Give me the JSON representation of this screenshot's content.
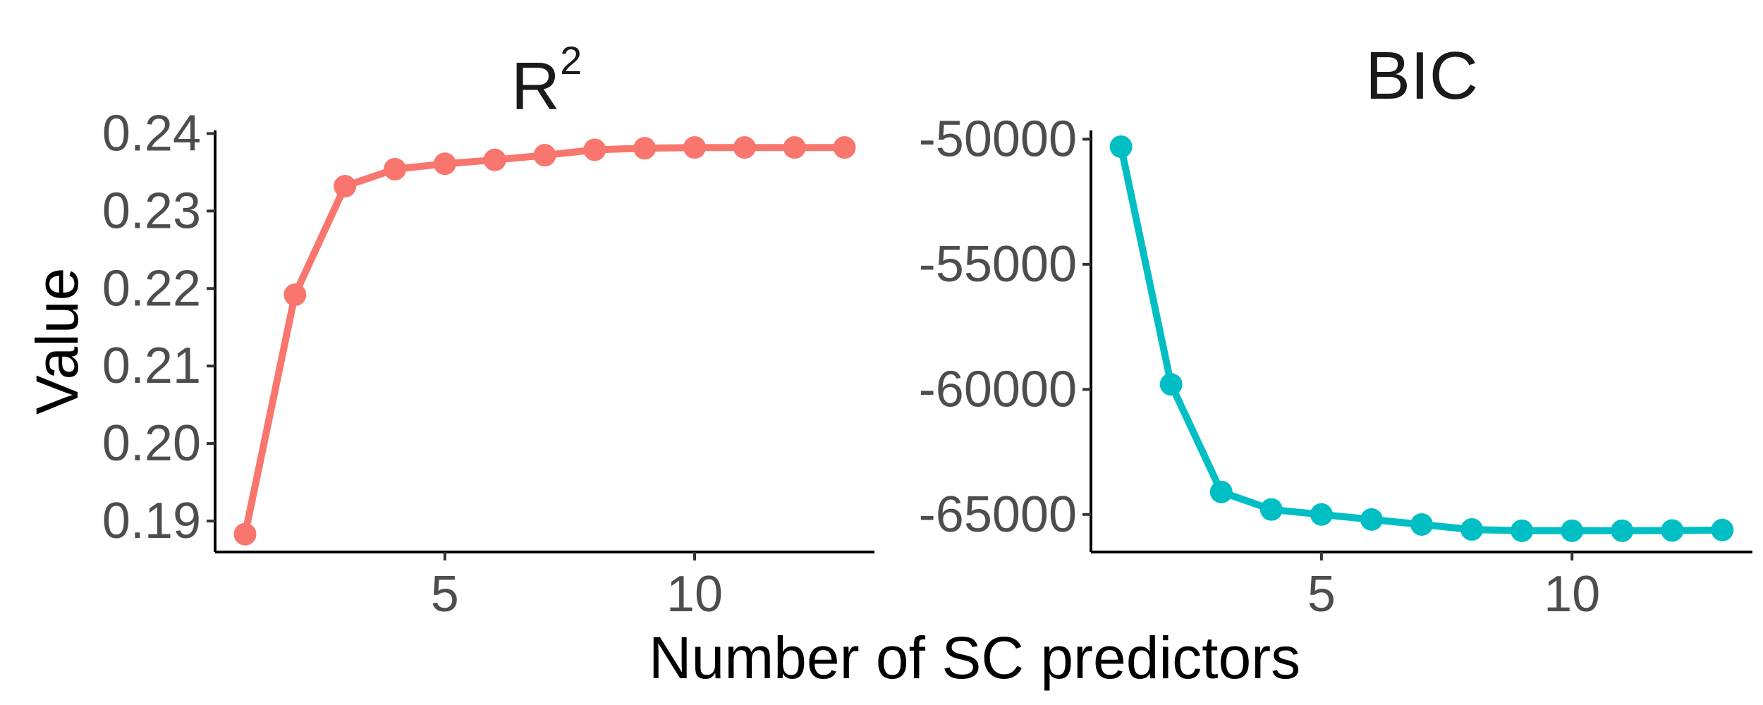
{
  "figure": {
    "xlabel": "Number of SC predictors",
    "ylabel": "Value"
  },
  "chart_data": [
    {
      "type": "line",
      "title": "R",
      "title_superscript": "2",
      "xlabel": "Number of SC predictors",
      "ylabel": "Value",
      "color": "#F8766D",
      "x": [
        1,
        2,
        3,
        4,
        5,
        6,
        7,
        8,
        9,
        10,
        11,
        12,
        13
      ],
      "y": [
        0.1883,
        0.2192,
        0.2332,
        0.2354,
        0.2361,
        0.2366,
        0.2372,
        0.2379,
        0.2381,
        0.2382,
        0.2382,
        0.2382,
        0.2382
      ],
      "xlim": [
        0.4,
        13.6
      ],
      "ylim": [
        0.186,
        0.2404
      ],
      "xticks": [
        5,
        10
      ],
      "xtick_labels": [
        "5",
        "10"
      ],
      "yticks": [
        0.19,
        0.2,
        0.21,
        0.22,
        0.23,
        0.24
      ],
      "ytick_labels": [
        "0.19",
        "0.20",
        "0.21",
        "0.22",
        "0.23",
        "0.24"
      ],
      "grid": false
    },
    {
      "type": "line",
      "title": "BIC",
      "xlabel": "Number of SC predictors",
      "ylabel": "Value",
      "color": "#00BFC4",
      "x": [
        1,
        2,
        3,
        4,
        5,
        6,
        7,
        8,
        9,
        10,
        11,
        12,
        13
      ],
      "y": [
        -50300,
        -59800,
        -64100,
        -64800,
        -65000,
        -65200,
        -65400,
        -65600,
        -65650,
        -65650,
        -65650,
        -65640,
        -65620
      ],
      "xlim": [
        0.4,
        13.6
      ],
      "ylim": [
        -66500,
        -49650
      ],
      "xticks": [
        5,
        10
      ],
      "xtick_labels": [
        "5",
        "10"
      ],
      "yticks": [
        -65000,
        -60000,
        -55000,
        -50000
      ],
      "ytick_labels": [
        "-65000",
        "-60000",
        "-55000",
        "-50000"
      ],
      "grid": false
    }
  ]
}
